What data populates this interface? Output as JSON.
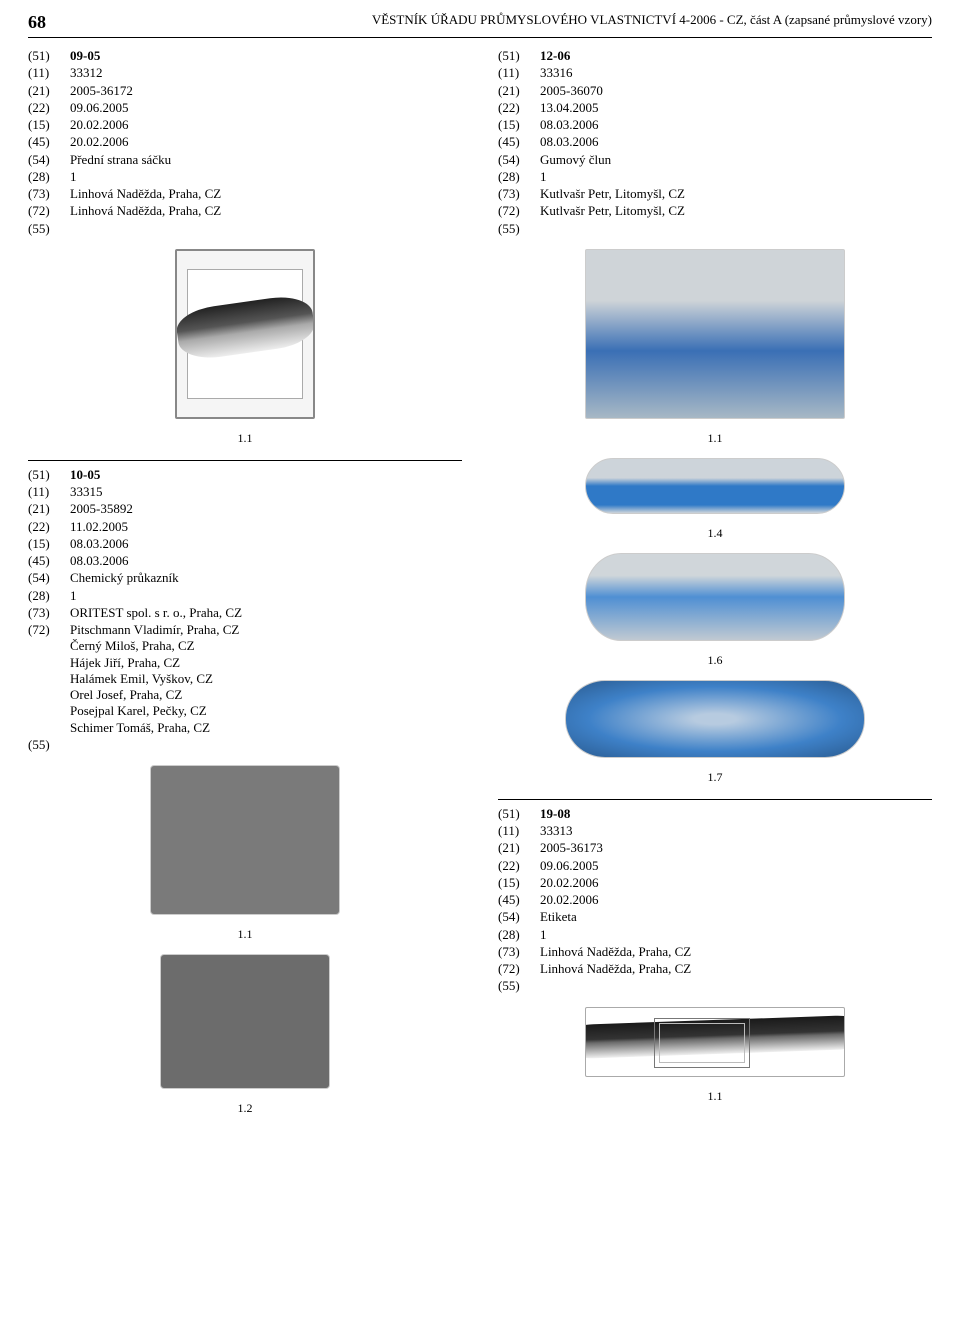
{
  "page_number": "68",
  "header_title": "VĚSTNÍK ÚŘADU PRŮMYSLOVÉHO VLASTNICTVÍ 4-2006 - CZ, část A (zapsané průmyslové vzory)",
  "entries": {
    "e1": {
      "c51": "09-05",
      "c11": "33312",
      "c21": "2005-36172",
      "c22": "09.06.2005",
      "c15": "20.02.2006",
      "c45": "20.02.2006",
      "c54": "Přední strana sáčku",
      "c28": "1",
      "c73": "Linhová Naděžda, Praha, CZ",
      "c72": "Linhová Naděžda, Praha, CZ",
      "fig": "1.1"
    },
    "e2": {
      "c51": "12-06",
      "c11": "33316",
      "c21": "2005-36070",
      "c22": "13.04.2005",
      "c15": "08.03.2006",
      "c45": "08.03.2006",
      "c54": "Gumový člun",
      "c28": "1",
      "c73": "Kutlvašr Petr, Litomyšl, CZ",
      "c72": "Kutlvašr Petr, Litomyšl, CZ",
      "figs": [
        "1.1",
        "1.4",
        "1.6",
        "1.7"
      ]
    },
    "e3": {
      "c51": "10-05",
      "c11": "33315",
      "c21": "2005-35892",
      "c22": "11.02.2005",
      "c15": "08.03.2006",
      "c45": "08.03.2006",
      "c54": "Chemický průkazník",
      "c28": "1",
      "c73": "ORITEST spol. s r. o., Praha, CZ",
      "c72": [
        "Pitschmann Vladimír, Praha, CZ",
        "Černý Miloš, Praha, CZ",
        "Hájek Jiří, Praha, CZ",
        "Halámek Emil, Vyškov, CZ",
        "Orel Josef, Praha, CZ",
        "Posejpal Karel, Pečky, CZ",
        "Schimer Tomáš, Praha, CZ"
      ],
      "figs": [
        "1.1",
        "1.2"
      ]
    },
    "e4": {
      "c51": "19-08",
      "c11": "33313",
      "c21": "2005-36173",
      "c22": "09.06.2005",
      "c15": "20.02.2006",
      "c45": "20.02.2006",
      "c54": "Etiketa",
      "c28": "1",
      "c73": "Linhová Naděžda, Praha, CZ",
      "c72": "Linhová Naděžda, Praha, CZ",
      "fig": "1.1"
    }
  },
  "codes": {
    "c51": "(51)",
    "c11": "(11)",
    "c21": "(21)",
    "c22": "(22)",
    "c15": "(15)",
    "c45": "(45)",
    "c54": "(54)",
    "c28": "(28)",
    "c73": "(73)",
    "c72": "(72)",
    "c55": "(55)"
  }
}
